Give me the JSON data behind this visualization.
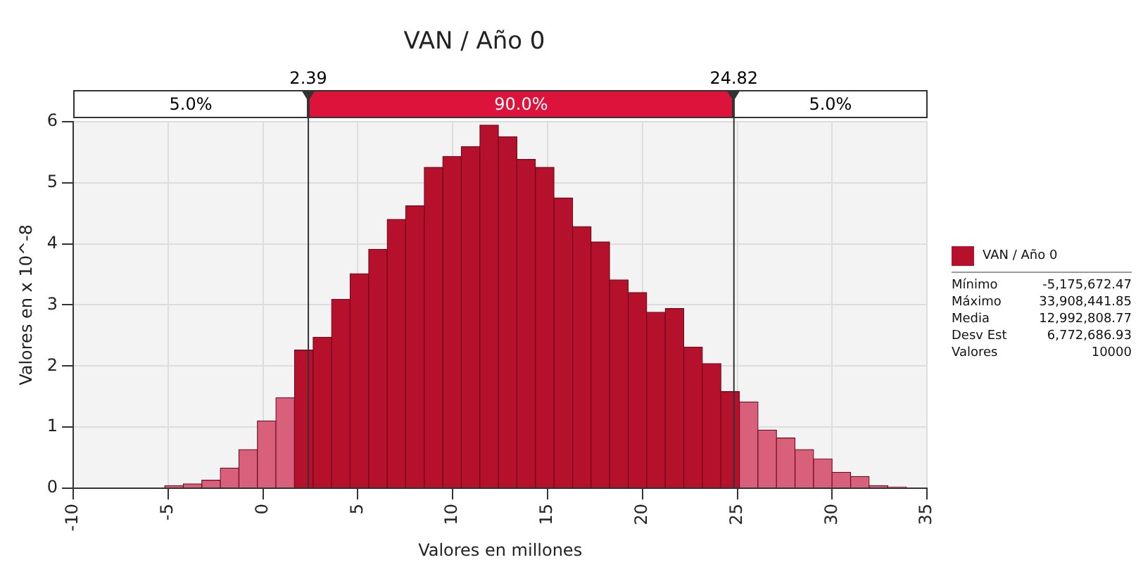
{
  "chart_data": {
    "type": "histogram",
    "title": "VAN / Año 0",
    "xlabel": "Valores en millones",
    "ylabel": "Valores en x 10^-8",
    "bins": [
      -5.18,
      -4.2,
      -3.22,
      -2.25,
      -1.27,
      -0.29,
      0.68,
      1.66,
      2.64,
      3.62,
      4.59,
      5.57,
      6.55,
      7.52,
      8.5,
      9.48,
      10.45,
      11.43,
      12.41,
      13.38,
      14.36,
      15.34,
      16.32,
      17.29,
      18.27,
      19.25,
      20.22,
      21.2,
      22.18,
      23.16,
      24.13,
      25.11,
      26.09,
      27.06,
      28.04,
      29.02,
      29.99,
      30.97,
      31.95,
      32.93,
      33.91
    ],
    "series": [
      {
        "name": "VAN / Año 0",
        "color": "#b5102c",
        "values": [
          0.04,
          0.07,
          0.13,
          0.33,
          0.63,
          1.1,
          1.48,
          2.26,
          2.47,
          3.09,
          3.51,
          3.91,
          4.4,
          4.62,
          5.25,
          5.43,
          5.59,
          5.94,
          5.75,
          5.38,
          5.25,
          4.75,
          4.28,
          4.03,
          3.41,
          3.2,
          2.88,
          2.94,
          2.31,
          2.04,
          1.58,
          1.41,
          0.95,
          0.82,
          0.63,
          0.48,
          0.26,
          0.19,
          0.04,
          0.02
        ],
        "colors": [
          "#d9607a",
          "#d9607a",
          "#d9607a",
          "#d9607a",
          "#d9607a",
          "#d9607a",
          "#d9607a",
          "#b5102c",
          "#b5102c",
          "#b5102c",
          "#b5102c",
          "#b5102c",
          "#b5102c",
          "#b5102c",
          "#b5102c",
          "#b5102c",
          "#b5102c",
          "#b5102c",
          "#b5102c",
          "#b5102c",
          "#b5102c",
          "#b5102c",
          "#b5102c",
          "#b5102c",
          "#b5102c",
          "#b5102c",
          "#b5102c",
          "#b5102c",
          "#b5102c",
          "#b5102c",
          "#b5102c",
          "#d9607a",
          "#d9607a",
          "#d9607a",
          "#d9607a",
          "#d9607a",
          "#d9607a",
          "#d9607a",
          "#d9607a",
          "#d9607a"
        ]
      }
    ],
    "xlim": [
      -10,
      35
    ],
    "xticks": [
      -10,
      -5,
      0,
      5,
      10,
      15,
      20,
      25,
      30,
      35
    ],
    "ylim": [
      0,
      6
    ],
    "yticks": [
      0,
      1,
      2,
      3,
      4,
      5,
      6
    ],
    "grid": true,
    "legend": "right",
    "ref_lines": [
      {
        "axis": "x",
        "value": 2.39,
        "label": "2.39",
        "color": "#333333"
      },
      {
        "axis": "x",
        "value": 24.82,
        "label": "24.82",
        "color": "#333333"
      }
    ],
    "annotations": [
      "5.0%",
      "90.0%",
      "5.0%",
      "Mínimo",
      "-5,175,672.47",
      "Máximo",
      "33,908,441.85",
      "Media",
      "12,992,808.77",
      "Desv Est",
      "6,772,686.93",
      "Valores",
      "10000"
    ]
  }
}
